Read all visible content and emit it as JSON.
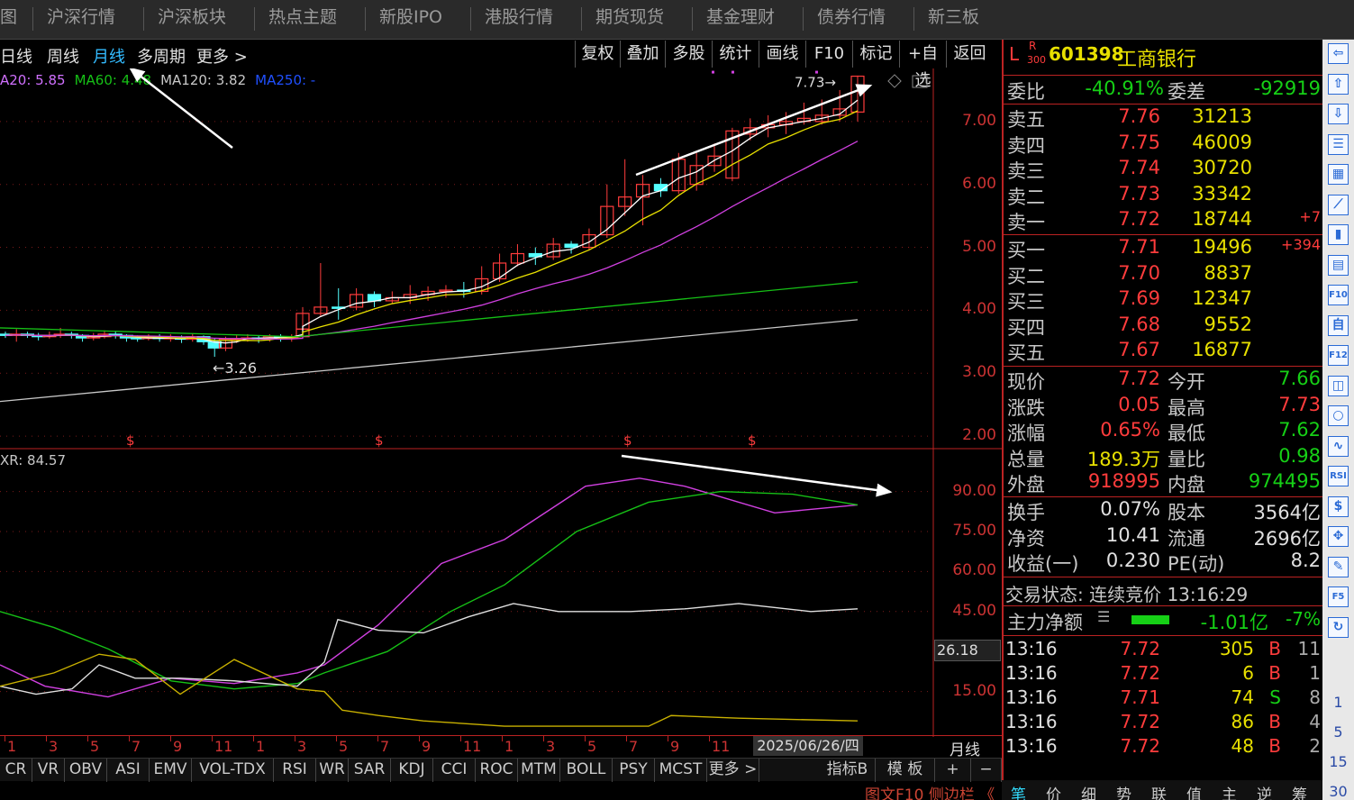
{
  "topnav": {
    "items": [
      "图",
      "沪深行情",
      "沪深板块",
      "热点主题",
      "新股IPO",
      "港股行情",
      "期货现货",
      "基金理财",
      "债券行情",
      "新三板"
    ]
  },
  "periods": {
    "items": [
      "日线",
      "周线",
      "月线",
      "多周期",
      "更多 >"
    ],
    "active": "月线"
  },
  "chart_buttons": [
    "复权",
    "叠加",
    "多股",
    "统计",
    "画线",
    "F10",
    "标记",
    "+自选",
    "返回"
  ],
  "ma_legend": [
    {
      "text": "A20: 5.85",
      "color": "#d070ff"
    },
    {
      "text": "MA60: 4.48",
      "color": "#16c016"
    },
    {
      "text": "MA120: 3.82",
      "color": "#c8c8c8"
    },
    {
      "text": "MA250: -",
      "color": "#2050ff"
    }
  ],
  "price_axis": [
    "7.00",
    "6.00",
    "5.00",
    "4.00",
    "3.00",
    "2.00"
  ],
  "osc_axis": [
    "90.00",
    "75.00",
    "60.00",
    "45.00",
    "15.00"
  ],
  "osc_label": "XR: 84.57",
  "current_osc_value": "26.18",
  "chart_data": {
    "type": "candlestick",
    "ylim": [
      1.6,
      7.9
    ],
    "candles": [
      [
        3.62,
        3.6,
        3.66,
        3.56
      ],
      [
        3.6,
        3.62,
        3.7,
        3.5
      ],
      [
        3.62,
        3.6,
        3.66,
        3.56
      ],
      [
        3.6,
        3.58,
        3.64,
        3.52
      ],
      [
        3.58,
        3.6,
        3.66,
        3.55
      ],
      [
        3.6,
        3.62,
        3.72,
        3.56
      ],
      [
        3.62,
        3.6,
        3.66,
        3.55
      ],
      [
        3.6,
        3.56,
        3.62,
        3.5
      ],
      [
        3.56,
        3.58,
        3.64,
        3.52
      ],
      [
        3.58,
        3.62,
        3.68,
        3.55
      ],
      [
        3.62,
        3.6,
        3.66,
        3.55
      ],
      [
        3.6,
        3.56,
        3.62,
        3.5
      ],
      [
        3.56,
        3.55,
        3.6,
        3.5
      ],
      [
        3.55,
        3.57,
        3.62,
        3.52
      ],
      [
        3.57,
        3.55,
        3.62,
        3.5
      ],
      [
        3.55,
        3.56,
        3.62,
        3.5
      ],
      [
        3.56,
        3.54,
        3.6,
        3.48
      ],
      [
        3.54,
        3.58,
        3.63,
        3.5
      ],
      [
        3.58,
        3.5,
        3.6,
        3.45
      ],
      [
        3.5,
        3.4,
        3.55,
        3.26
      ],
      [
        3.4,
        3.54,
        3.58,
        3.35
      ],
      [
        3.54,
        3.55,
        3.6,
        3.48
      ],
      [
        3.55,
        3.56,
        3.62,
        3.5
      ],
      [
        3.56,
        3.55,
        3.6,
        3.48
      ],
      [
        3.55,
        3.58,
        3.62,
        3.5
      ],
      [
        3.58,
        3.56,
        3.62,
        3.5
      ],
      [
        3.56,
        3.58,
        3.62,
        3.5
      ],
      [
        3.58,
        3.7,
        3.75,
        3.55
      ],
      [
        3.7,
        3.95,
        4.05,
        3.68
      ],
      [
        3.95,
        4.05,
        4.75,
        3.9
      ],
      [
        4.05,
        4.03,
        4.35,
        3.85
      ],
      [
        4.05,
        4.25,
        4.35,
        4.0
      ],
      [
        4.25,
        4.15,
        4.3,
        4.05
      ],
      [
        4.15,
        4.2,
        4.3,
        4.1
      ],
      [
        4.2,
        4.25,
        4.4,
        4.1
      ],
      [
        4.25,
        4.3,
        4.38,
        4.15
      ],
      [
        4.3,
        4.32,
        4.4,
        4.2
      ],
      [
        4.32,
        4.3,
        4.45,
        4.2
      ],
      [
        4.3,
        4.5,
        4.7,
        4.25
      ],
      [
        4.5,
        4.75,
        4.9,
        4.45
      ],
      [
        4.75,
        4.9,
        5.05,
        4.7
      ],
      [
        4.9,
        4.85,
        5.0,
        4.72
      ],
      [
        4.85,
        5.05,
        5.15,
        4.8
      ],
      [
        5.05,
        5.0,
        5.1,
        4.9
      ],
      [
        5.0,
        5.2,
        5.3,
        4.95
      ],
      [
        5.2,
        5.65,
        6.0,
        5.15
      ],
      [
        5.65,
        5.8,
        6.4,
        5.5
      ],
      [
        5.8,
        6.0,
        6.15,
        5.35
      ],
      [
        6.0,
        5.9,
        6.1,
        5.8
      ],
      [
        5.9,
        6.4,
        6.5,
        5.85
      ],
      [
        6.0,
        6.3,
        6.5,
        5.9
      ],
      [
        6.3,
        6.45,
        6.65,
        6.2
      ],
      [
        6.1,
        6.85,
        6.9,
        6.05
      ],
      [
        6.8,
        6.9,
        7.05,
        6.7
      ],
      [
        6.9,
        6.95,
        7.1,
        6.75
      ],
      [
        6.95,
        7.0,
        7.15,
        6.8
      ],
      [
        7.0,
        7.05,
        7.3,
        6.95
      ],
      [
        7.0,
        7.1,
        7.35,
        6.95
      ],
      [
        7.1,
        7.2,
        7.5,
        7.0
      ],
      [
        7.15,
        7.72,
        7.73,
        7.0
      ]
    ],
    "low_marker": "3.26",
    "high_marker": "7.73"
  },
  "x_axis": [
    "1",
    "3",
    "5",
    "7",
    "9",
    "11",
    "1",
    "3",
    "5",
    "7",
    "9",
    "11",
    "1",
    "3",
    "5",
    "7",
    "9",
    "11"
  ],
  "date_cell": "2025/06/26/四",
  "period_label": "月线",
  "indicators": [
    "CR",
    "VR",
    "OBV",
    "ASI",
    "EMV",
    "VOL-TDX",
    "RSI",
    "WR",
    "SAR",
    "KDJ",
    "CCI",
    "ROC",
    "MTM",
    "BOLL",
    "PSY",
    "MCST",
    "更多 >"
  ],
  "indicator_tabs": [
    "指标B",
    "模 板",
    "+",
    "−"
  ],
  "bottom_status": "图文F10 侧边栏 《",
  "stock": {
    "prefix": "L",
    "r": "R",
    "num": "300",
    "code": "601398",
    "name": "工商银行"
  },
  "weibi": {
    "label": "委比",
    "value": "-40.91%",
    "label2": "委差",
    "value2": "-92919"
  },
  "sells": [
    {
      "label": "卖五",
      "price": "7.76",
      "vol": "31213",
      "chg": ""
    },
    {
      "label": "卖四",
      "price": "7.75",
      "vol": "46009",
      "chg": ""
    },
    {
      "label": "卖三",
      "price": "7.74",
      "vol": "30720",
      "chg": ""
    },
    {
      "label": "卖二",
      "price": "7.73",
      "vol": "33342",
      "chg": ""
    },
    {
      "label": "卖一",
      "price": "7.72",
      "vol": "18744",
      "chg": "+7"
    }
  ],
  "buys": [
    {
      "label": "买一",
      "price": "7.71",
      "vol": "19496",
      "chg": "+394"
    },
    {
      "label": "买二",
      "price": "7.70",
      "vol": "8837",
      "chg": ""
    },
    {
      "label": "买三",
      "price": "7.69",
      "vol": "12347",
      "chg": ""
    },
    {
      "label": "买四",
      "price": "7.68",
      "vol": "9552",
      "chg": ""
    },
    {
      "label": "买五",
      "price": "7.67",
      "vol": "16877",
      "chg": ""
    }
  ],
  "quote": [
    {
      "l1": "现价",
      "v1": "7.72",
      "c1": "red",
      "l2": "今开",
      "v2": "7.66",
      "c2": "green"
    },
    {
      "l1": "涨跌",
      "v1": "0.05",
      "c1": "red",
      "l2": "最高",
      "v2": "7.73",
      "c2": "red"
    },
    {
      "l1": "涨幅",
      "v1": "0.65%",
      "c1": "red",
      "l2": "最低",
      "v2": "7.62",
      "c2": "green"
    },
    {
      "l1": "总量",
      "v1": "189.3万",
      "c1": "yellow",
      "l2": "量比",
      "v2": "0.98",
      "c2": "green"
    },
    {
      "l1": "外盘",
      "v1": "918995",
      "c1": "red",
      "l2": "内盘",
      "v2": "974495",
      "c2": "green"
    }
  ],
  "finance": [
    {
      "l1": "换手",
      "v1": "0.07%",
      "l2": "股本",
      "v2": "3564亿"
    },
    {
      "l1": "净资",
      "v1": "10.41",
      "l2": "流通",
      "v2": "2696亿"
    },
    {
      "l1": "收益(一)",
      "v1": "0.230",
      "l2": "PE(动)",
      "v2": "8.2"
    }
  ],
  "trade_status": "交易状态: 连续竞价 13:16:29",
  "main_flow": {
    "label": "主力净额",
    "value": "-1.01亿",
    "pct": "-7%"
  },
  "ticks": [
    {
      "time": "13:16",
      "price": "7.72",
      "pc": "red",
      "vol": "305",
      "side": "B",
      "n": "11"
    },
    {
      "time": "13:16",
      "price": "7.72",
      "pc": "red",
      "vol": "6",
      "side": "B",
      "n": "1"
    },
    {
      "time": "13:16",
      "price": "7.71",
      "pc": "red",
      "vol": "74",
      "side": "S",
      "n": "8"
    },
    {
      "time": "13:16",
      "price": "7.72",
      "pc": "red",
      "vol": "86",
      "side": "B",
      "n": "4"
    },
    {
      "time": "13:16",
      "price": "7.72",
      "pc": "red",
      "vol": "48",
      "side": "B",
      "n": "2"
    }
  ],
  "right_tabs": [
    "笔",
    "价",
    "细",
    "势",
    "联",
    "值",
    "主",
    "逆",
    "筹"
  ],
  "toolbar": {
    "icons": [
      "back-arrow-icon",
      "up-arrow-icon",
      "down-arrow-icon",
      "list-icon",
      "grid-icon",
      "line-chart-icon",
      "kline-icon",
      "doc-icon",
      "f10-icon",
      "self-icon",
      "f12-icon",
      "news-icon",
      "circle-icon",
      "wave-icon",
      "rsi-icon",
      "money-icon",
      "move-icon",
      "pen-icon",
      "f5-icon",
      "refresh-icon"
    ],
    "icon_text": [
      "⇦",
      "⇧",
      "⇩",
      "☰",
      "▦",
      "⟋",
      "▮",
      "▤",
      "F10",
      "自",
      "F12",
      "◫",
      "○",
      "∿",
      "RSI",
      "$",
      "✥",
      "✎",
      "F5",
      "↻"
    ],
    "numbers": [
      "1",
      "5",
      "15",
      "30"
    ]
  }
}
